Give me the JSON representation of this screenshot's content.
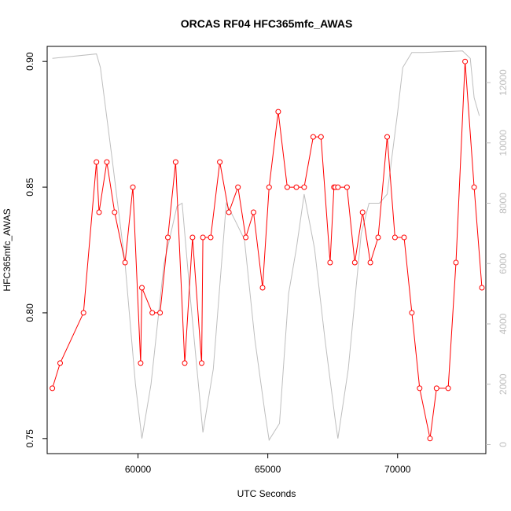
{
  "chart_data": {
    "type": "line",
    "title": "ORCAS RF04 HFC365mfc_AWAS",
    "xlabel": "UTC Seconds",
    "ylabel": "HFC365mfc_AWAS",
    "y2label": "",
    "xlim": [
      56500,
      73400
    ],
    "ylim": [
      0.744,
      0.906
    ],
    "y2lim": [
      -300,
      13200
    ],
    "x_ticks": [
      60000,
      65000,
      70000
    ],
    "x_tick_labels": [
      "60000",
      "65000",
      "70000"
    ],
    "y_ticks": [
      0.75,
      0.8,
      0.85,
      0.9
    ],
    "y_tick_labels": [
      "0.75",
      "0.80",
      "0.85",
      "0.90"
    ],
    "y2_ticks": [
      0,
      2000,
      4000,
      6000,
      8000,
      10000,
      12000
    ],
    "y2_tick_labels": [
      "0",
      "2000",
      "4000",
      "6000",
      "8000",
      "10000",
      "12000"
    ],
    "grid": false,
    "legend": "none",
    "colors": {
      "primary": "#ff0000",
      "secondary": "#bebebe",
      "axes": "#000000"
    },
    "series": [
      {
        "role": "primary",
        "axis": "left",
        "style": "line-with-open-circles",
        "x": [
          56700,
          57000,
          57900,
          58400,
          58500,
          58800,
          59100,
          59500,
          59800,
          60100,
          60150,
          60550,
          60850,
          61150,
          61450,
          61800,
          62100,
          62450,
          62500,
          62800,
          63150,
          63500,
          63850,
          64150,
          64450,
          64800,
          65050,
          65400,
          65750,
          66100,
          66400,
          66750,
          67050,
          67400,
          67550,
          67600,
          67700,
          68050,
          68350,
          68650,
          68950,
          69250,
          69600,
          69900,
          70250,
          70550,
          70850,
          71250,
          71500,
          71950,
          72250,
          72600,
          72950,
          73250
        ],
        "y": [
          0.77,
          0.78,
          0.8,
          0.86,
          0.84,
          0.86,
          0.84,
          0.82,
          0.85,
          0.78,
          0.81,
          0.8,
          0.8,
          0.83,
          0.86,
          0.78,
          0.83,
          0.78,
          0.83,
          0.83,
          0.86,
          0.84,
          0.85,
          0.83,
          0.84,
          0.81,
          0.85,
          0.88,
          0.85,
          0.85,
          0.85,
          0.87,
          0.87,
          0.82,
          0.85,
          0.85,
          0.85,
          0.85,
          0.82,
          0.84,
          0.82,
          0.83,
          0.87,
          0.83,
          0.83,
          0.8,
          0.77,
          0.75,
          0.77,
          0.77,
          0.82,
          0.9,
          0.85,
          0.81
        ]
      },
      {
        "role": "secondary",
        "axis": "right",
        "style": "line",
        "x": [
          56700,
          58400,
          58550,
          59000,
          59500,
          59900,
          60150,
          60500,
          61000,
          61500,
          61700,
          62000,
          62500,
          62900,
          63400,
          63700,
          64100,
          64500,
          64900,
          65050,
          65450,
          65800,
          66100,
          66400,
          66800,
          67200,
          67600,
          67700,
          68100,
          68600,
          68900,
          69300,
          69600,
          70000,
          70200,
          70550,
          71000,
          72500,
          72800,
          72950,
          73150
        ],
        "y": [
          12800,
          12950,
          12500,
          9500,
          6000,
          2000,
          200,
          2000,
          6000,
          7900,
          8000,
          5000,
          400,
          2500,
          8000,
          7500,
          6800,
          3500,
          1000,
          150,
          700,
          5000,
          6500,
          8300,
          6500,
          3500,
          800,
          200,
          2500,
          7000,
          8000,
          8000,
          8300,
          11000,
          12500,
          13000,
          13000,
          13050,
          12800,
          11500,
          10900
        ]
      }
    ]
  }
}
